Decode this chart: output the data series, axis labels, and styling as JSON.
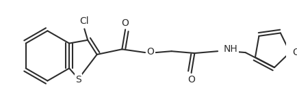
{
  "line_color": "#2d2d2d",
  "bg_color": "#ffffff",
  "line_width": 1.5,
  "figsize": [
    4.34,
    1.6
  ],
  "dpi": 100,
  "xlim": [
    0,
    434
  ],
  "ylim": [
    0,
    160
  ]
}
